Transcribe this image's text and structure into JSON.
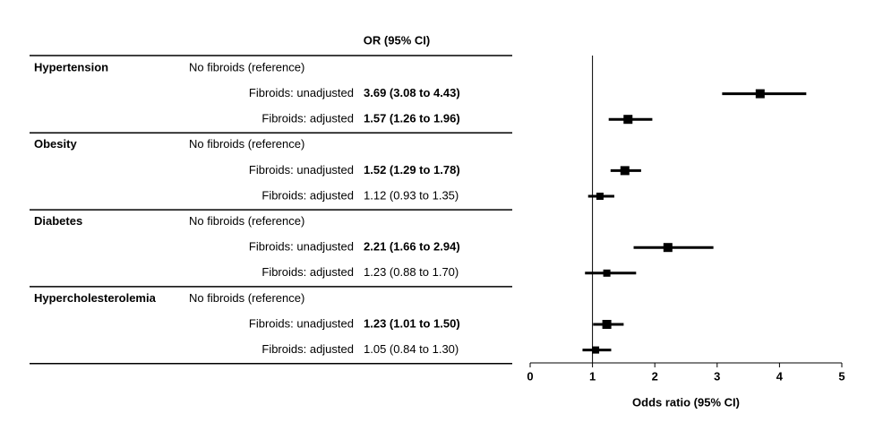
{
  "chart_data": {
    "type": "forest",
    "column_header": "OR (95% CI)",
    "x_label": "Odds ratio (95% CI)",
    "xlim": [
      0,
      5
    ],
    "xticks": [
      0,
      1,
      2,
      3,
      4,
      5
    ],
    "reference_line": 1,
    "color": "#000000",
    "groups": [
      {
        "name": "Hypertension",
        "rows": [
          {
            "label": "No fibroids (reference)"
          },
          {
            "label": "Fibroids: unadjusted",
            "or": 3.69,
            "lower": 3.08,
            "upper": 4.43,
            "ci_label": "3.69 (3.08 to 4.43)",
            "bold": true
          },
          {
            "label": "Fibroids: adjusted",
            "or": 1.57,
            "lower": 1.26,
            "upper": 1.96,
            "ci_label": "1.57 (1.26 to 1.96)",
            "bold": true
          }
        ]
      },
      {
        "name": "Obesity",
        "rows": [
          {
            "label": "No fibroids (reference)"
          },
          {
            "label": "Fibroids: unadjusted",
            "or": 1.52,
            "lower": 1.29,
            "upper": 1.78,
            "ci_label": "1.52 (1.29 to 1.78)",
            "bold": true
          },
          {
            "label": "Fibroids: adjusted",
            "or": 1.12,
            "lower": 0.93,
            "upper": 1.35,
            "ci_label": "1.12 (0.93 to 1.35)",
            "bold": false
          }
        ]
      },
      {
        "name": "Diabetes",
        "rows": [
          {
            "label": "No fibroids (reference)"
          },
          {
            "label": "Fibroids: unadjusted",
            "or": 2.21,
            "lower": 1.66,
            "upper": 2.94,
            "ci_label": "2.21 (1.66 to 2.94)",
            "bold": true
          },
          {
            "label": "Fibroids: adjusted",
            "or": 1.23,
            "lower": 0.88,
            "upper": 1.7,
            "ci_label": "1.23 (0.88 to 1.70)",
            "bold": false
          }
        ]
      },
      {
        "name": "Hypercholesterolemia",
        "rows": [
          {
            "label": "No fibroids (reference)"
          },
          {
            "label": "Fibroids: unadjusted",
            "or": 1.23,
            "lower": 1.01,
            "upper": 1.5,
            "ci_label": "1.23 (1.01 to 1.50)",
            "bold": true
          },
          {
            "label": "Fibroids: adjusted",
            "or": 1.05,
            "lower": 0.84,
            "upper": 1.3,
            "ci_label": "1.05 (0.84 to 1.30)",
            "bold": false
          }
        ]
      }
    ]
  }
}
